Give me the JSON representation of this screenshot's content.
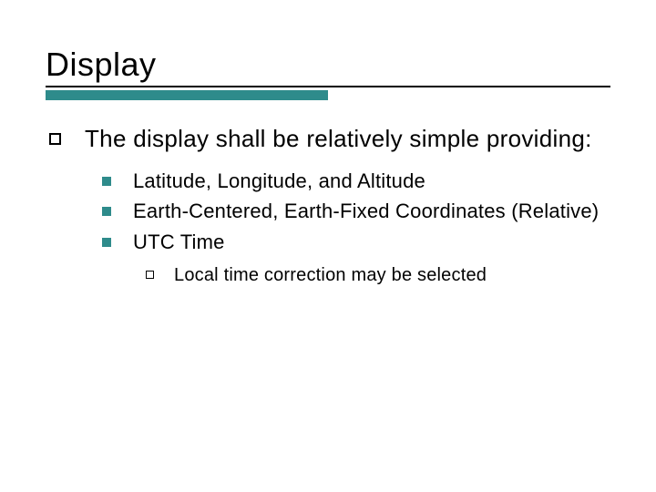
{
  "slide": {
    "title": "Display",
    "accent_color": "#2e8b8b",
    "underline_thin_color": "#000000",
    "main_bullet": "The display shall be relatively simple providing:",
    "sub_bullets": [
      "Latitude, Longitude, and Altitude",
      "Earth-Centered, Earth-Fixed Coordinates (Relative)",
      "UTC Time"
    ],
    "subsub_bullets": [
      "Local time correction may be selected"
    ]
  },
  "style": {
    "title_fontsize": 36,
    "level1_fontsize": 26,
    "level2_fontsize": 22,
    "level3_fontsize": 20,
    "background_color": "#ffffff",
    "text_color": "#000000"
  }
}
